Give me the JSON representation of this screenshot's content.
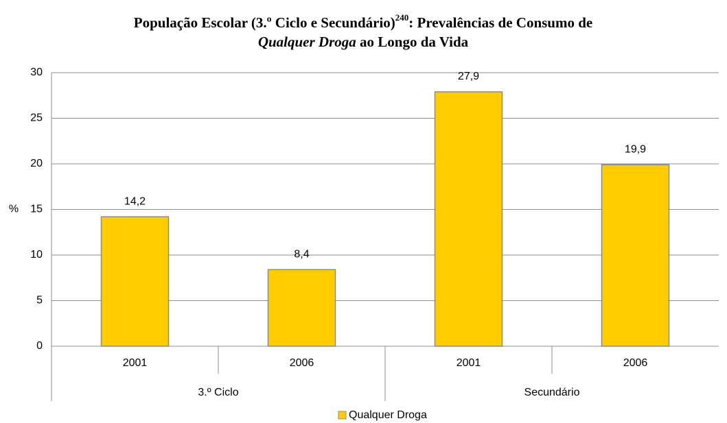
{
  "chart_data": {
    "type": "bar",
    "title_lines": [
      [
        {
          "text": "População Escolar (3.º Ciclo e Secundário)"
        },
        {
          "text": "240",
          "style": "sup"
        },
        {
          "text": ": Prevalências de Consumo de"
        }
      ],
      [
        {
          "text": "Qualquer Droga",
          "style": "italic"
        },
        {
          "text": " ao Longo da Vida"
        }
      ]
    ],
    "y_label": "%",
    "categories": [
      "2001",
      "2006",
      "2001",
      "2006"
    ],
    "groups": [
      "3.º Ciclo",
      "Secundário"
    ],
    "series": [
      {
        "name": "Qualquer Droga",
        "color": "#ffcc00",
        "values": [
          14.2,
          8.4,
          27.9,
          19.9
        ],
        "value_labels": [
          "14,2",
          "8,4",
          "27,9",
          "19,9"
        ]
      }
    ],
    "ylim": [
      0,
      30
    ],
    "yticks": [
      0,
      5,
      10,
      15,
      20,
      25,
      30
    ],
    "grid": true,
    "legend": "bottom"
  }
}
